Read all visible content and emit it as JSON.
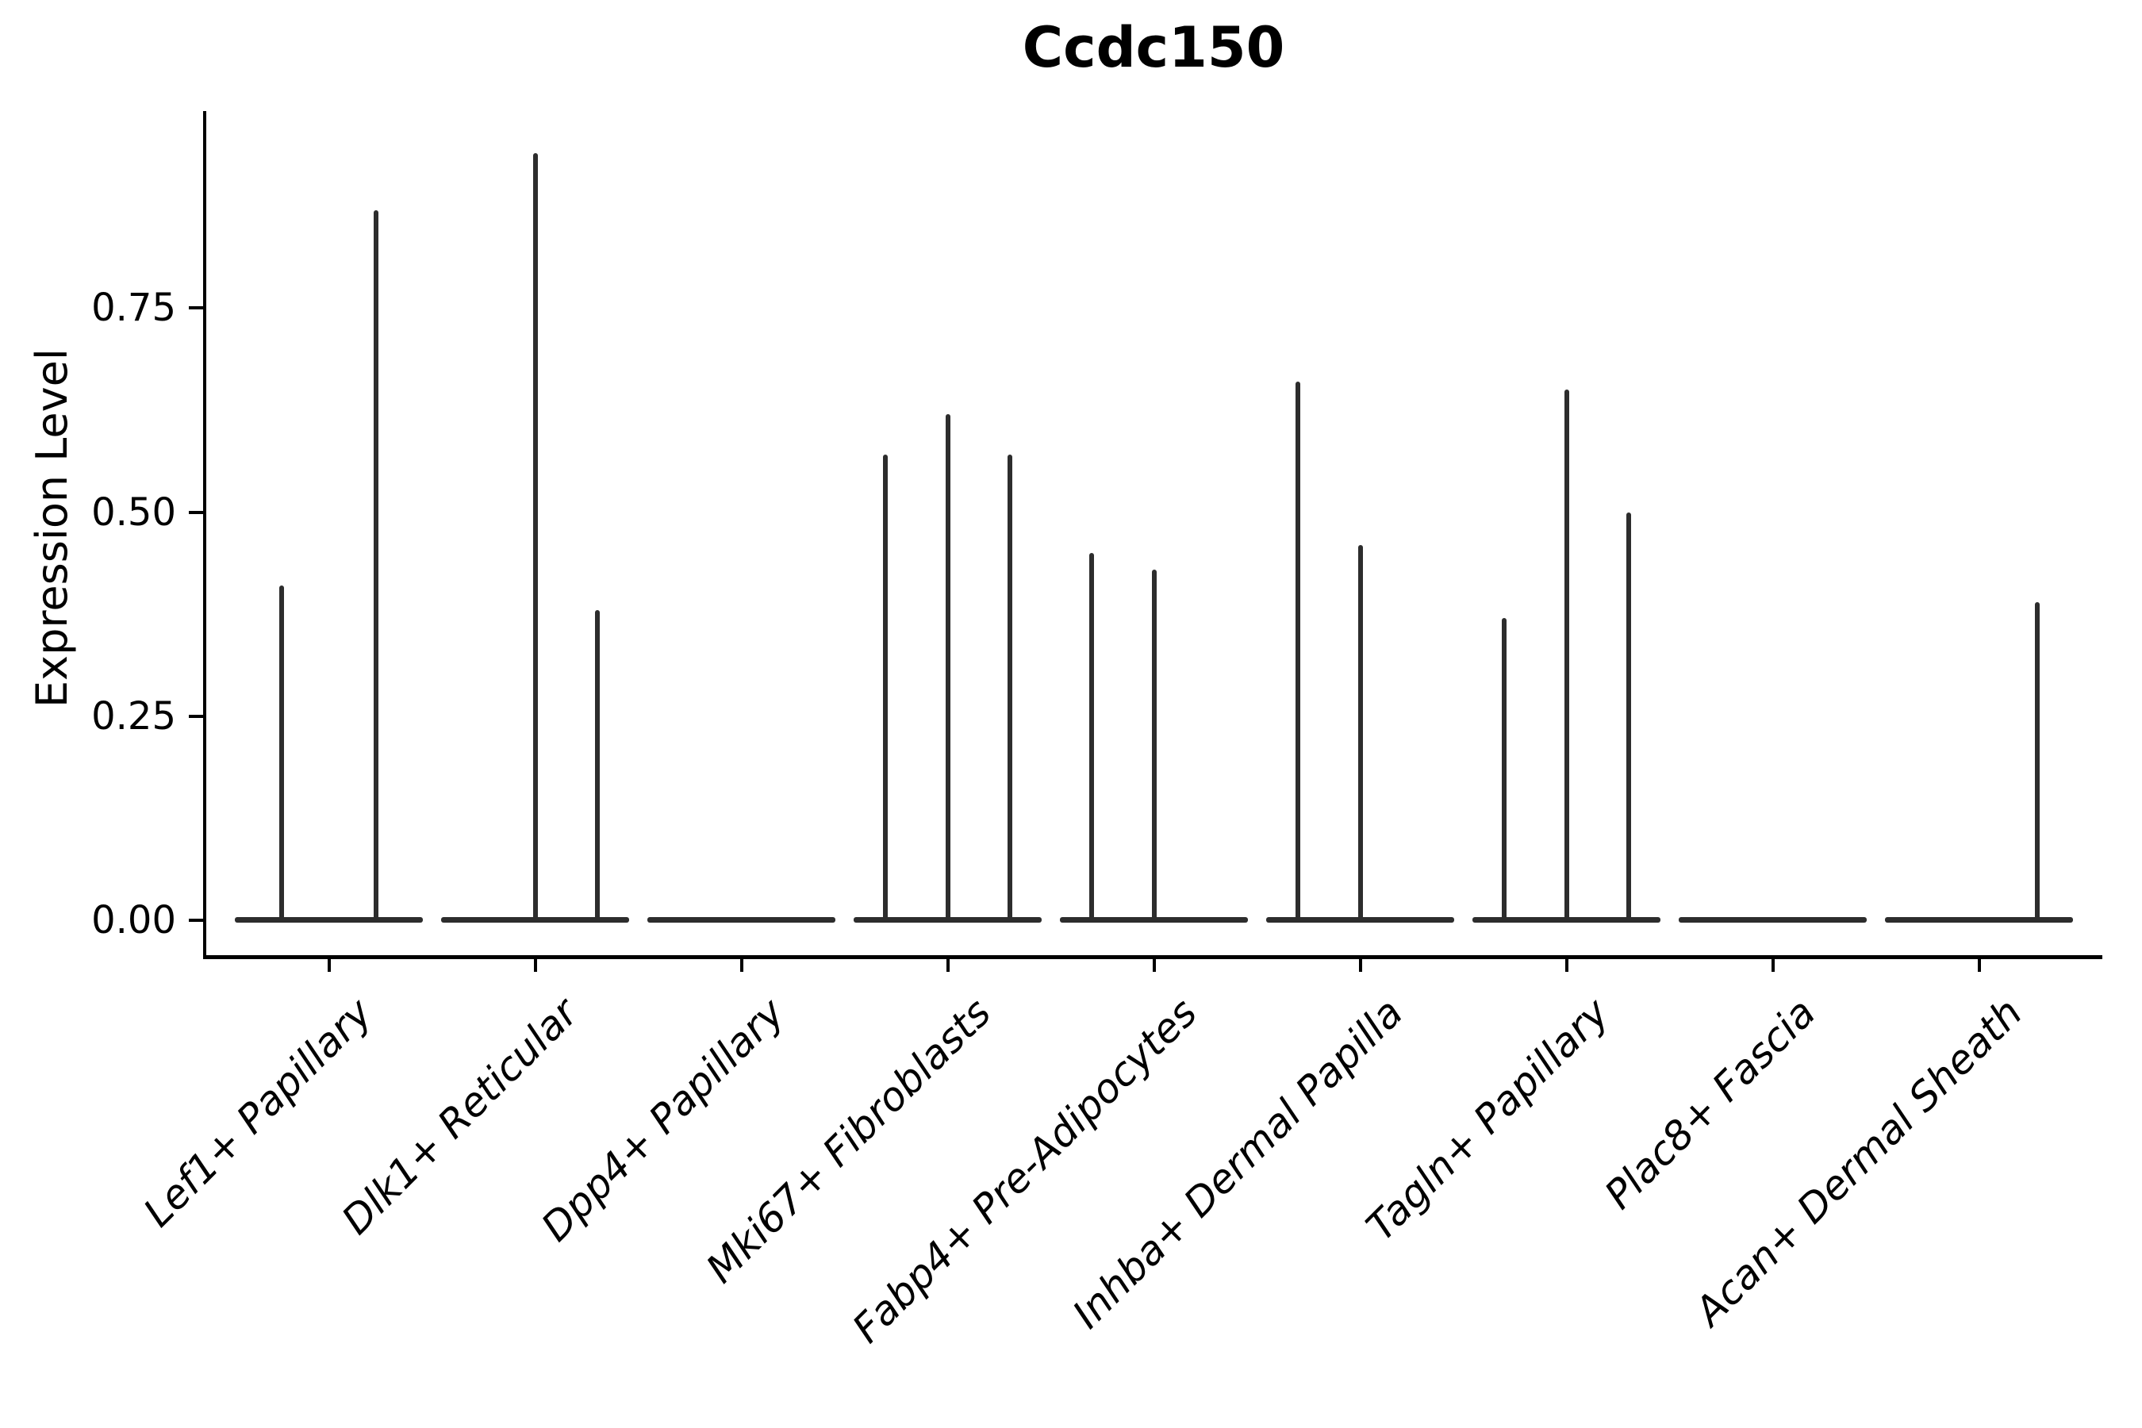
{
  "title": "Ccdc150",
  "y_axis": {
    "label": "Expression Level",
    "tick_labels": [
      "0.00",
      "0.25",
      "0.50",
      "0.75"
    ]
  },
  "colors": {
    "violin": "#2d2d2d",
    "axis": "#000000",
    "background": "#ffffff"
  },
  "chart_data": {
    "type": "violin",
    "title": "Ccdc150",
    "xlabel": "",
    "ylabel": "Expression Level",
    "ylim": [
      -0.05,
      0.99
    ],
    "yticks": [
      0,
      0.25,
      0.5,
      0.75
    ],
    "grid": false,
    "legend_position": "none",
    "categories": [
      "Lef1+ Papillary",
      "Dlk1+ Reticular",
      "Dpp4+ Papillary",
      "Mki67+ Fibroblasts",
      "Fabp4+ Pre-Adipocytes",
      "Inhba+ Dermal Papilla",
      "Tagln+ Papillary",
      "Plac8+ Fascia",
      "Acan+ Dermal Sheath"
    ],
    "series": [
      {
        "category": "Lef1+ Papillary",
        "spikes": [
          {
            "offset": 0.25,
            "peak": 0.41
          },
          {
            "offset": 0.75,
            "peak": 0.87
          }
        ]
      },
      {
        "category": "Dlk1+ Reticular",
        "spikes": [
          {
            "offset": 0.5,
            "peak": 0.94
          },
          {
            "offset": 0.83,
            "peak": 0.38
          }
        ]
      },
      {
        "category": "Dpp4+ Papillary",
        "spikes": []
      },
      {
        "category": "Mki67+ Fibroblasts",
        "spikes": [
          {
            "offset": 0.17,
            "peak": 0.57
          },
          {
            "offset": 0.5,
            "peak": 0.62
          },
          {
            "offset": 0.83,
            "peak": 0.57
          }
        ]
      },
      {
        "category": "Fabp4+ Pre-Adipocytes",
        "spikes": [
          {
            "offset": 0.17,
            "peak": 0.45
          },
          {
            "offset": 0.5,
            "peak": 0.43
          }
        ]
      },
      {
        "category": "Inhba+ Dermal Papilla",
        "spikes": [
          {
            "offset": 0.17,
            "peak": 0.66
          },
          {
            "offset": 0.5,
            "peak": 0.46
          }
        ]
      },
      {
        "category": "Tagln+ Papillary",
        "spikes": [
          {
            "offset": 0.17,
            "peak": 0.37
          },
          {
            "offset": 0.5,
            "peak": 0.65
          },
          {
            "offset": 0.83,
            "peak": 0.5
          }
        ]
      },
      {
        "category": "Plac8+ Fascia",
        "spikes": []
      },
      {
        "category": "Acan+ Dermal Sheath",
        "spikes": [
          {
            "offset": 0.81,
            "peak": 0.39
          }
        ]
      }
    ]
  }
}
